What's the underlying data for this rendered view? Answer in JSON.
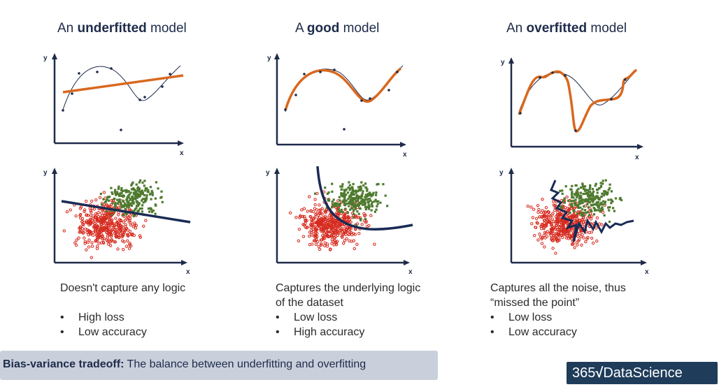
{
  "panels": [
    {
      "title_prefix": "An ",
      "title_bold": "underfitted",
      "title_suffix": " model",
      "desc_lines": [
        "Doesn't capture any logic"
      ],
      "bullets": [
        "High loss",
        "Low accuracy"
      ]
    },
    {
      "title_prefix": "A ",
      "title_bold": "good",
      "title_suffix": " model",
      "desc_lines": [
        "Captures the underlying logic",
        "of the dataset"
      ],
      "bullets": [
        "Low loss",
        "High accuracy"
      ]
    },
    {
      "title_prefix": "An ",
      "title_bold": "overfitted",
      "title_suffix": " model",
      "desc_lines": [
        "Captures all the noise, thus",
        "“missed the point”"
      ],
      "bullets": [
        "Low loss",
        "Low accuracy"
      ]
    }
  ],
  "axes": {
    "x": "x",
    "y": "y"
  },
  "footer": {
    "bold": "Bias-variance tradeoff:",
    "rest": " The balance between underfitting and overfitting"
  },
  "logo": {
    "number": "365",
    "brand": "DataScience"
  },
  "colors": {
    "navy": "#1e2b4a",
    "orange": "#d9681e",
    "red_points": "#d62a1e",
    "green_points": "#4e7a2e",
    "footer_bg": "#c9d0dc"
  }
}
